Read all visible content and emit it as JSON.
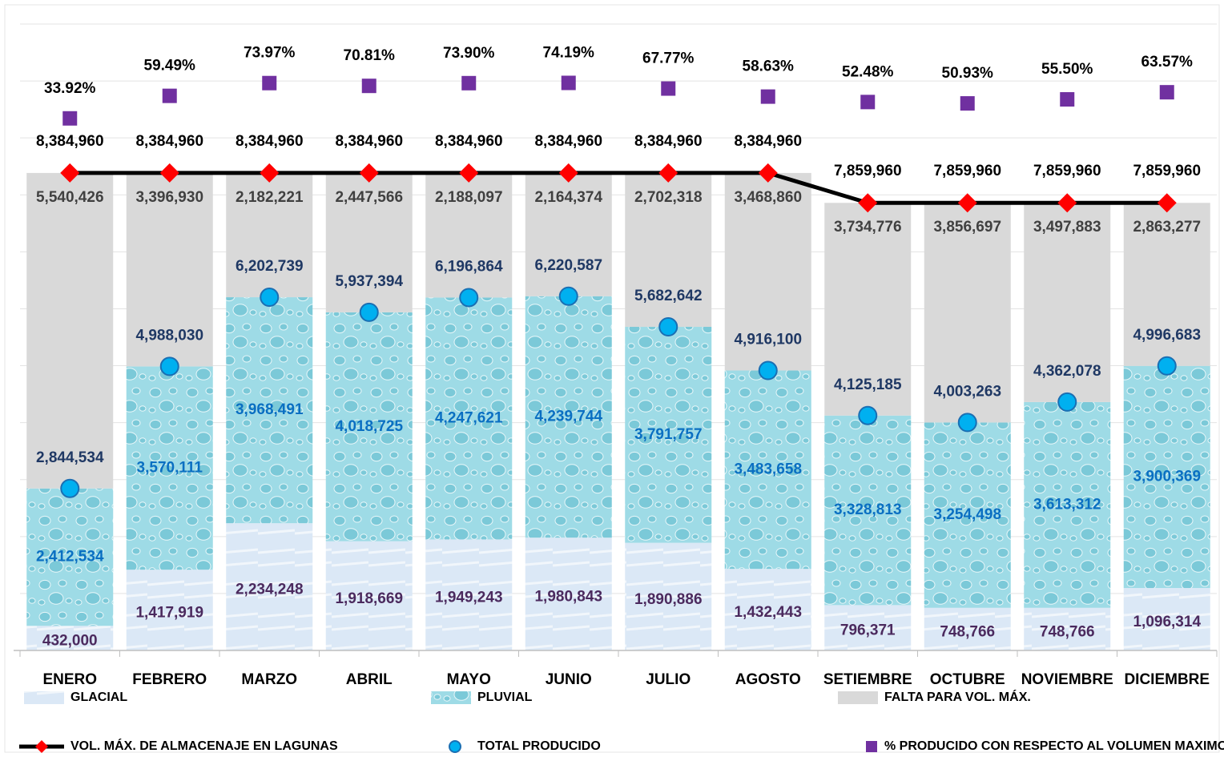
{
  "chart_data": {
    "type": "bar",
    "stacked": true,
    "categories": [
      "ENERO",
      "FEBRERO",
      "MARZO",
      "ABRIL",
      "MAYO",
      "JUNIO",
      "JULIO",
      "AGOSTO",
      "SETIEMBRE",
      "OCTUBRE",
      "NOVIEMBRE",
      "DICIEMBRE"
    ],
    "series": [
      {
        "name": "GLACIAL",
        "type": "bar",
        "color": "#dbe8f6",
        "label_color": "#4b2a5e",
        "values": [
          432000,
          1417919,
          2234248,
          1918669,
          1949243,
          1980843,
          1890886,
          1432443,
          796371,
          748766,
          748766,
          1096314
        ],
        "value_labels": [
          "432,000",
          "1,417,919",
          "2,234,248",
          "1,918,669",
          "1,949,243",
          "1,980,843",
          "1,890,886",
          "1,432,443",
          "796,371",
          "748,766",
          "748,766",
          "1,096,314"
        ]
      },
      {
        "name": "PLUVIAL",
        "type": "bar",
        "color": "#9edbe6",
        "label_color": "#0a6fc2",
        "values": [
          2412534,
          3570111,
          3968491,
          4018725,
          4247621,
          4239744,
          3791757,
          3483658,
          3328813,
          3254498,
          3613312,
          3900369
        ],
        "value_labels": [
          "2,412,534",
          "3,570,111",
          "3,968,491",
          "4,018,725",
          "4,247,621",
          "4,239,744",
          "3,791,757",
          "3,483,658",
          "3,328,813",
          "3,254,498",
          "3,613,312",
          "3,900,369"
        ]
      },
      {
        "name": "FALTA PARA VOL. MÁX.",
        "type": "bar",
        "color": "#d9d9d9",
        "label_color": "#404040",
        "values": [
          5540426,
          3396930,
          2182221,
          2447566,
          2188097,
          2164374,
          2702318,
          3468860,
          3734776,
          3856697,
          3497883,
          2863277
        ],
        "value_labels": [
          "5,540,426",
          "3,396,930",
          "2,182,221",
          "2,447,566",
          "2,188,097",
          "2,164,374",
          "2,702,318",
          "3,468,860",
          "3,734,776",
          "3,856,697",
          "3,497,883",
          "2,863,277"
        ]
      },
      {
        "name": "VOL. MÁX. DE ALMACENAJE EN LAGUNAS",
        "type": "line",
        "color": "#000000",
        "marker_color": "#ff0000",
        "label_color": "#000000",
        "values": [
          8384960,
          8384960,
          8384960,
          8384960,
          8384960,
          8384960,
          8384960,
          8384960,
          7859960,
          7859960,
          7859960,
          7859960
        ],
        "value_labels": [
          "8,384,960",
          "8,384,960",
          "8,384,960",
          "8,384,960",
          "8,384,960",
          "8,384,960",
          "8,384,960",
          "8,384,960",
          "7,859,960",
          "7,859,960",
          "7,859,960",
          "7,859,960"
        ]
      },
      {
        "name": "TOTAL PRODUCIDO",
        "type": "scatter",
        "marker": "circle",
        "color": "#00b0f0",
        "label_color": "#1f3864",
        "values": [
          2844534,
          4988030,
          6202739,
          5937394,
          6196864,
          6220587,
          5682642,
          4916100,
          4125185,
          4003263,
          4362078,
          4996683
        ],
        "value_labels": [
          "2,844,534",
          "4,988,030",
          "6,202,739",
          "5,937,394",
          "6,196,864",
          "6,220,587",
          "5,682,642",
          "4,916,100",
          "4,125,185",
          "4,003,263",
          "4,362,078",
          "4,996,683"
        ]
      },
      {
        "name": "% PRODUCIDO CON RESPECTO AL VOLUMEN MAXIMO",
        "type": "scatter",
        "marker": "square",
        "axis": "y2",
        "color": "#7030a0",
        "label_color": "#000000",
        "values": [
          33.92,
          59.49,
          73.97,
          70.81,
          73.9,
          74.19,
          67.77,
          58.63,
          52.48,
          50.93,
          55.5,
          63.57
        ],
        "value_labels": [
          "33.92%",
          "59.49%",
          "73.97%",
          "70.81%",
          "73.90%",
          "74.19%",
          "67.77%",
          "58.63%",
          "52.48%",
          "50.93%",
          "55.50%",
          "63.57%"
        ]
      }
    ],
    "ylim": [
      0,
      11000000
    ],
    "yticks": [
      0,
      1000000,
      2000000,
      3000000,
      4000000,
      5000000,
      6000000,
      7000000,
      8000000,
      9000000,
      10000000,
      11000000
    ],
    "y2lim": [
      -570,
      141
    ],
    "grid": true,
    "legend": "bottom"
  }
}
